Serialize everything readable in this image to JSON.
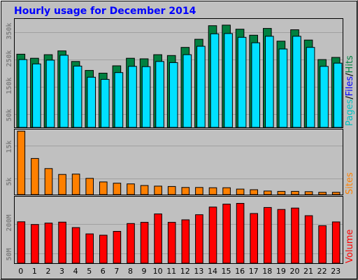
{
  "chart_title": "Hourly usage for December 2014",
  "colors": {
    "hits": "#008040",
    "files": "#00e0ff",
    "sites": "#ff8000",
    "volume": "#ff0000",
    "pages": "#00c0c0",
    "title": "#0000ff"
  },
  "legend": {
    "pages": "Pages",
    "sep1": "/",
    "files": "Files",
    "sep2": "/",
    "hits": "Hits",
    "sites": "Sites",
    "volume": "Volume"
  },
  "chart_data": [
    {
      "type": "bar",
      "name": "hits-files",
      "categories": [
        "0",
        "1",
        "2",
        "3",
        "4",
        "5",
        "6",
        "7",
        "8",
        "9",
        "10",
        "11",
        "12",
        "13",
        "14",
        "15",
        "16",
        "17",
        "18",
        "19",
        "20",
        "21",
        "22",
        "23"
      ],
      "series": [
        {
          "name": "Hits",
          "values": [
            270,
            255,
            268,
            282,
            243,
            210,
            200,
            227,
            255,
            253,
            268,
            265,
            295,
            325,
            375,
            377,
            362,
            340,
            365,
            318,
            360,
            322,
            250,
            258
          ]
        },
        {
          "name": "Files",
          "values": [
            250,
            234,
            248,
            266,
            226,
            185,
            177,
            202,
            225,
            224,
            243,
            239,
            268,
            299,
            345,
            346,
            332,
            312,
            336,
            289,
            336,
            295,
            225,
            237
          ]
        }
      ],
      "yticks": [
        50000,
        150000,
        250000,
        350000
      ],
      "ytick_labels": [
        "50k",
        "150k",
        "250k",
        "350k"
      ],
      "ylim": [
        0,
        400
      ],
      "unit": "thousands"
    },
    {
      "type": "bar",
      "name": "sites",
      "categories": [
        "0",
        "1",
        "2",
        "3",
        "4",
        "5",
        "6",
        "7",
        "8",
        "9",
        "10",
        "11",
        "12",
        "13",
        "14",
        "15",
        "16",
        "17",
        "18",
        "19",
        "20",
        "21",
        "22",
        "23"
      ],
      "series": [
        {
          "name": "Sites",
          "values": [
            19.5,
            11.1,
            8.0,
            6.2,
            6.3,
            5.0,
            3.9,
            3.5,
            3.3,
            2.8,
            2.6,
            2.5,
            2.2,
            2.2,
            2.1,
            2.1,
            1.7,
            1.5,
            1.1,
            1.0,
            1.0,
            0.9,
            0.7,
            0.7
          ]
        }
      ],
      "yticks": [
        5000,
        15000
      ],
      "ytick_labels": [
        "5k",
        "15k"
      ],
      "ylim": [
        0,
        20
      ],
      "unit": "thousands"
    },
    {
      "type": "bar",
      "name": "volume",
      "categories": [
        "0",
        "1",
        "2",
        "3",
        "4",
        "5",
        "6",
        "7",
        "8",
        "9",
        "10",
        "11",
        "12",
        "13",
        "14",
        "15",
        "16",
        "17",
        "18",
        "19",
        "20",
        "21",
        "22",
        "23"
      ],
      "series": [
        {
          "name": "Volume",
          "values": [
            212,
            198,
            205,
            210,
            182,
            150,
            143,
            163,
            203,
            209,
            252,
            209,
            222,
            248,
            287,
            302,
            306,
            254,
            285,
            275,
            282,
            243,
            192,
            211
          ]
        }
      ],
      "yticks": [
        50,
        200
      ],
      "ytick_labels": [
        "50M",
        "200M"
      ],
      "ylim": [
        0,
        340
      ],
      "unit": "MB"
    }
  ]
}
